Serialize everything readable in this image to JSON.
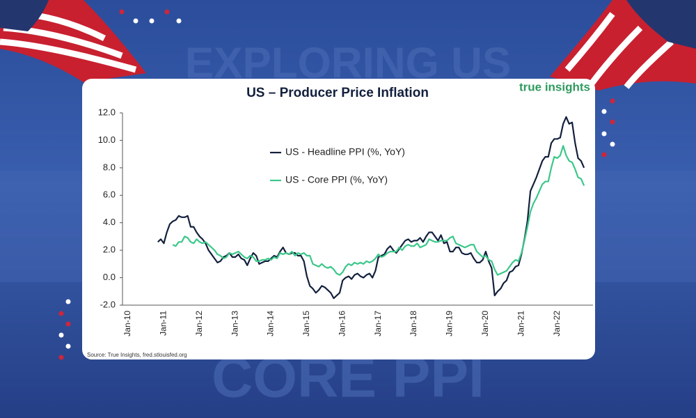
{
  "background": {
    "headline": "EXPLORING US",
    "footer": "CORE PPI"
  },
  "brand": "true insights",
  "source": "Source: True Insights, fred.stlouisfed.org",
  "chart_data": {
    "type": "line",
    "title": "US – Producer Price Inflation",
    "categories": [
      "Jan-10",
      null,
      null,
      null,
      null,
      null,
      null,
      null,
      null,
      null,
      null,
      null,
      "Jan-11",
      null,
      null,
      null,
      null,
      null,
      null,
      null,
      null,
      null,
      null,
      null,
      "Jan-12",
      null,
      null,
      null,
      null,
      null,
      null,
      null,
      null,
      null,
      null,
      null,
      "Jan-13",
      null,
      null,
      null,
      null,
      null,
      null,
      null,
      null,
      null,
      null,
      null,
      "Jan-14",
      null,
      null,
      null,
      null,
      null,
      null,
      null,
      null,
      null,
      null,
      null,
      "Jan-15",
      null,
      null,
      null,
      null,
      null,
      null,
      null,
      null,
      null,
      null,
      null,
      "Jan-16",
      null,
      null,
      null,
      null,
      null,
      null,
      null,
      null,
      null,
      null,
      null,
      "Jan-17",
      null,
      null,
      null,
      null,
      null,
      null,
      null,
      null,
      null,
      null,
      null,
      "Jan-18",
      null,
      null,
      null,
      null,
      null,
      null,
      null,
      null,
      null,
      null,
      null,
      "Jan-19",
      null,
      null,
      null,
      null,
      null,
      null,
      null,
      null,
      null,
      null,
      null,
      "Jan-20",
      null,
      null,
      null,
      null,
      null,
      null,
      null,
      null,
      null,
      null,
      null,
      "Jan-21",
      null,
      null,
      null,
      null,
      null,
      null,
      null,
      null,
      null,
      null,
      null,
      "Jan-22",
      null,
      null,
      null,
      null,
      null,
      null,
      null,
      null,
      null,
      null,
      null
    ],
    "series": [
      {
        "name": "US - Headline PPI (%, YoY)",
        "color": "#13203d",
        "values": [
          null,
          null,
          null,
          null,
          null,
          null,
          null,
          null,
          null,
          null,
          2.6,
          2.8,
          2.5,
          3.3,
          3.9,
          4.1,
          4.2,
          4.5,
          4.4,
          4.4,
          4.5,
          3.7,
          3.7,
          3.3,
          3.0,
          2.8,
          2.5,
          2.0,
          1.7,
          1.4,
          1.1,
          1.2,
          1.5,
          1.6,
          1.8,
          1.5,
          1.5,
          1.7,
          1.4,
          1.3,
          0.9,
          1.4,
          1.8,
          1.6,
          1.0,
          1.1,
          1.2,
          1.2,
          1.4,
          1.6,
          1.5,
          1.9,
          2.2,
          1.8,
          1.7,
          1.8,
          1.8,
          1.6,
          1.6,
          1.2,
          0.1,
          -0.6,
          -0.8,
          -1.1,
          -0.9,
          -0.6,
          -0.7,
          -0.9,
          -1.1,
          -1.5,
          -1.3,
          -1.1,
          -0.2,
          0.0,
          0.1,
          -0.1,
          0.2,
          0.3,
          0.1,
          0.0,
          0.2,
          0.3,
          0.0,
          0.5,
          1.5,
          1.6,
          1.7,
          2.1,
          2.3,
          2.0,
          1.8,
          2.1,
          2.4,
          2.7,
          2.8,
          2.6,
          2.7,
          2.7,
          2.9,
          2.6,
          3.0,
          3.3,
          3.3,
          3.0,
          2.7,
          3.1,
          2.5,
          2.6,
          1.9,
          1.9,
          2.2,
          2.2,
          1.8,
          1.7,
          1.7,
          1.8,
          1.4,
          1.1,
          1.1,
          1.3,
          1.9,
          1.2,
          0.7,
          -1.3,
          -1.0,
          -0.8,
          -0.4,
          -0.2,
          0.4,
          0.5,
          0.8,
          0.9,
          1.7,
          2.8,
          4.1,
          6.3,
          6.8,
          7.3,
          7.9,
          8.5,
          8.8,
          8.8,
          9.8,
          10.1,
          10.1,
          10.2,
          11.2,
          11.7,
          11.2,
          11.3,
          9.8,
          8.7,
          8.5,
          8.0,
          null,
          null
        ]
      },
      {
        "name": "US - Core PPI (%, YoY)",
        "color": "#3cc78a",
        "values": [
          null,
          null,
          null,
          null,
          null,
          null,
          null,
          null,
          null,
          null,
          null,
          null,
          null,
          null,
          null,
          2.4,
          2.3,
          2.6,
          2.6,
          3.0,
          2.9,
          2.6,
          2.5,
          2.8,
          2.6,
          2.5,
          2.6,
          2.4,
          2.2,
          2.0,
          1.7,
          1.6,
          1.4,
          1.5,
          1.8,
          1.7,
          1.8,
          1.9,
          1.7,
          1.5,
          1.4,
          1.6,
          1.5,
          1.2,
          1.2,
          1.3,
          1.3,
          1.4,
          1.3,
          1.5,
          1.4,
          1.8,
          1.7,
          1.8,
          1.7,
          1.9,
          1.6,
          1.8,
          1.7,
          1.8,
          1.6,
          1.6,
          1.0,
          0.9,
          0.8,
          1.0,
          0.8,
          0.7,
          0.8,
          0.6,
          0.3,
          0.2,
          0.4,
          0.8,
          1.0,
          0.9,
          1.1,
          1.0,
          1.1,
          1.0,
          1.2,
          1.1,
          1.2,
          1.4,
          1.7,
          1.5,
          1.6,
          1.8,
          1.9,
          1.9,
          1.9,
          2.2,
          2.0,
          2.3,
          2.4,
          2.3,
          2.3,
          2.5,
          2.2,
          2.3,
          2.4,
          2.8,
          2.7,
          2.6,
          2.6,
          2.7,
          2.7,
          2.7,
          2.9,
          3.0,
          2.5,
          2.4,
          2.3,
          2.2,
          2.3,
          2.4,
          2.4,
          1.9,
          1.7,
          1.5,
          1.6,
          1.3,
          1.2,
          0.6,
          0.2,
          0.3,
          0.4,
          0.5,
          0.8,
          1.1,
          1.3,
          1.2,
          1.8,
          2.7,
          3.7,
          4.8,
          5.4,
          5.8,
          6.3,
          6.8,
          7.0,
          7.0,
          8.0,
          8.8,
          8.7,
          8.9,
          9.6,
          8.9,
          8.5,
          8.4,
          7.9,
          7.3,
          7.2,
          6.7,
          null,
          null
        ]
      }
    ],
    "ylim": [
      -2,
      12
    ],
    "yticks": [
      {
        "value": -2,
        "label": "-2.0"
      },
      {
        "value": 0,
        "label": "0.0"
      },
      {
        "value": 2,
        "label": "2.0"
      },
      {
        "value": 4,
        "label": "4.0"
      },
      {
        "value": 6,
        "label": "6.0"
      },
      {
        "value": 8,
        "label": "8.0"
      },
      {
        "value": 10,
        "label": "10.0"
      },
      {
        "value": 12,
        "label": "12.0"
      }
    ],
    "grid": false
  }
}
